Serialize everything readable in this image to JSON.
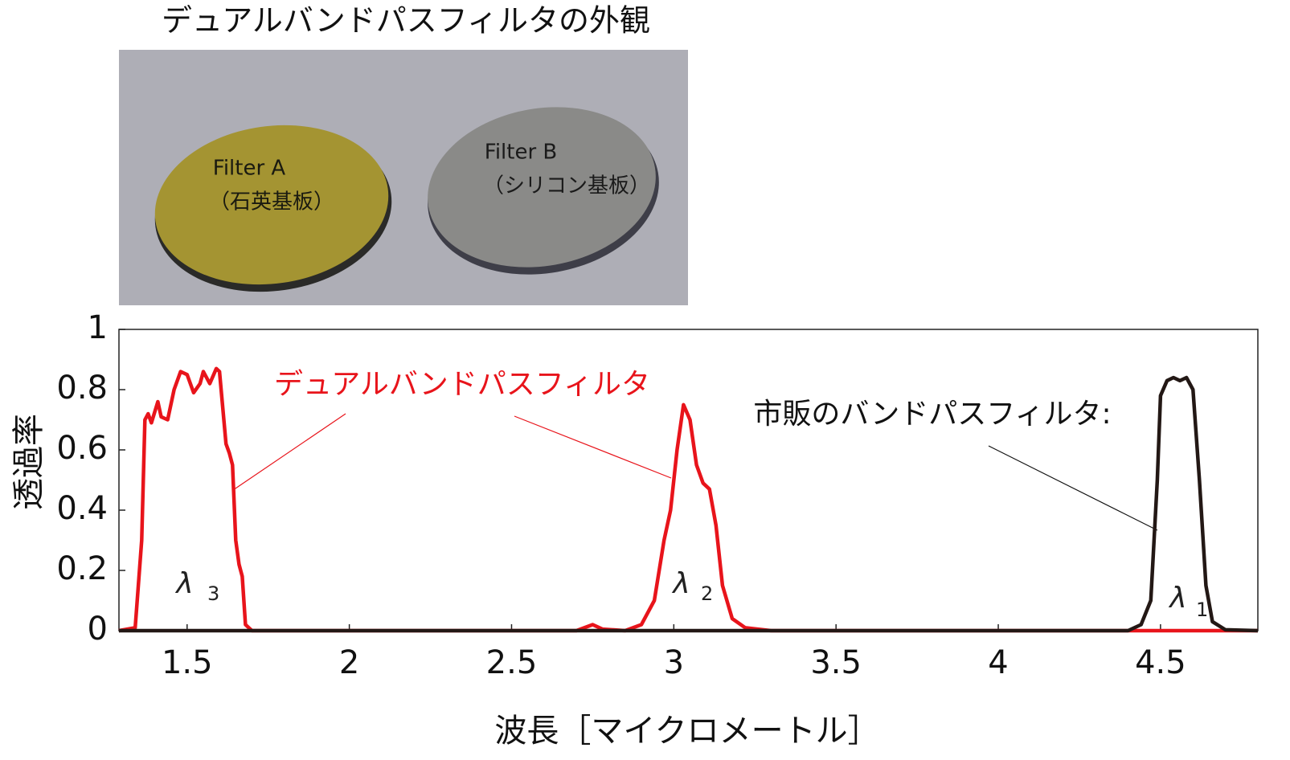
{
  "photo": {
    "caption": "デュアルバンドパスフィルタの外観",
    "filters": [
      {
        "name": "Filter A",
        "substrate": "（石英基板）"
      },
      {
        "name": "Filter B",
        "substrate": "（シリコン基板）"
      }
    ]
  },
  "chart_data": {
    "type": "line",
    "x_label": "波長［マイクロメートル］",
    "y_label": "透過率",
    "xlim": [
      1.29,
      4.8
    ],
    "ylim": [
      0,
      1
    ],
    "xticks": [
      1.5,
      2,
      2.5,
      3,
      3.5,
      4,
      4.5
    ],
    "yticks": [
      0,
      0.2,
      0.4,
      0.6,
      0.8,
      1
    ],
    "grid": false,
    "annotations": [
      "デュアルバンドパスフィルタ",
      "市販のバンドパスフィルタ:"
    ],
    "band_labels": [
      {
        "symbol": "λ",
        "subscript": "3"
      },
      {
        "symbol": "λ",
        "subscript": "2"
      },
      {
        "symbol": "λ",
        "subscript": "1"
      }
    ],
    "series": [
      {
        "color": "#e8141b",
        "x": [
          1.29,
          1.34,
          1.36,
          1.37,
          1.38,
          1.39,
          1.41,
          1.42,
          1.44,
          1.46,
          1.48,
          1.5,
          1.52,
          1.54,
          1.55,
          1.57,
          1.59,
          1.6,
          1.62,
          1.63,
          1.64,
          1.65,
          1.66,
          1.67,
          1.68,
          1.7,
          2.7,
          2.75,
          2.78,
          2.85,
          2.9,
          2.94,
          2.97,
          2.99,
          3.01,
          3.03,
          3.05,
          3.07,
          3.09,
          3.11,
          3.13,
          3.15,
          3.18,
          3.22,
          3.3,
          4.8
        ],
        "values": [
          0,
          0.01,
          0.3,
          0.7,
          0.72,
          0.69,
          0.76,
          0.71,
          0.7,
          0.8,
          0.86,
          0.85,
          0.79,
          0.82,
          0.86,
          0.82,
          0.87,
          0.86,
          0.62,
          0.59,
          0.55,
          0.3,
          0.22,
          0.18,
          0.02,
          0,
          0,
          0.02,
          0.005,
          0,
          0.02,
          0.1,
          0.3,
          0.4,
          0.6,
          0.75,
          0.7,
          0.55,
          0.49,
          0.47,
          0.35,
          0.15,
          0.04,
          0.01,
          0,
          0
        ]
      },
      {
        "color": "#231815",
        "x": [
          1.29,
          4.4,
          4.44,
          4.47,
          4.49,
          4.5,
          4.52,
          4.54,
          4.56,
          4.58,
          4.6,
          4.62,
          4.64,
          4.66,
          4.7,
          4.8
        ],
        "values": [
          0,
          0,
          0.02,
          0.1,
          0.5,
          0.78,
          0.83,
          0.84,
          0.83,
          0.84,
          0.8,
          0.5,
          0.15,
          0.03,
          0.003,
          0
        ]
      }
    ]
  }
}
